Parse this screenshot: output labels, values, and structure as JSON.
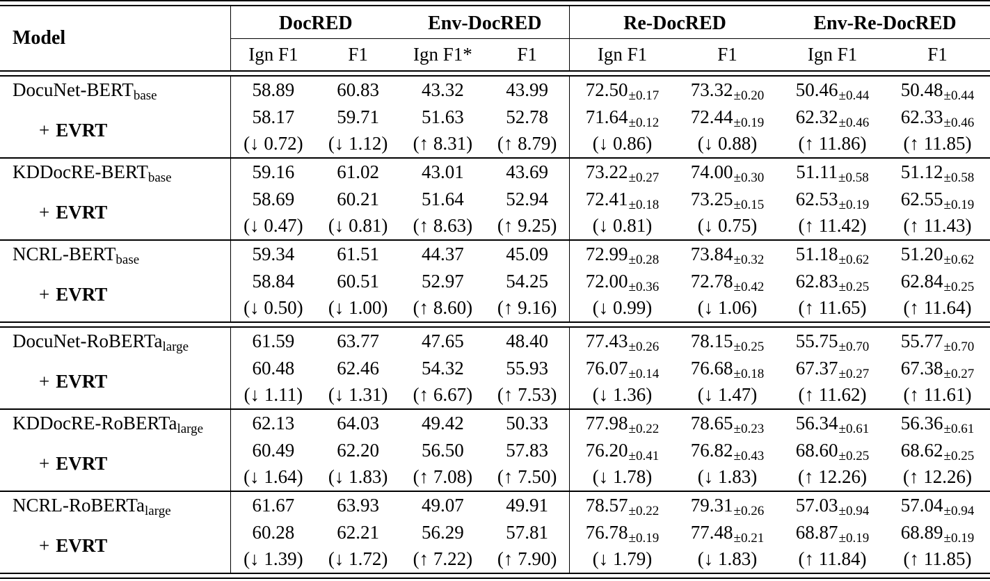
{
  "colors": {
    "background": "#ffffff",
    "text": "#000000",
    "rules": "#000000"
  },
  "table": {
    "header": {
      "model": "Model",
      "groups": [
        {
          "label": "DocRED"
        },
        {
          "label": "Env-DocRED"
        },
        {
          "label": "Re-DocRED"
        },
        {
          "label": "Env-Re-DocRED"
        }
      ],
      "subheaders": [
        "Ign F1",
        "F1",
        "Ign F1*",
        "F1",
        "Ign F1",
        "F1",
        "Ign F1",
        "F1"
      ]
    },
    "blocks": [
      {
        "model": "DocuNet-BERT",
        "model_sub": "base",
        "evrt_plus": "+",
        "evrt_name": "EVRT",
        "base": [
          {
            "t": "58.89"
          },
          {
            "t": "60.83"
          },
          {
            "t": "43.32"
          },
          {
            "t": "43.99"
          },
          {
            "t": "72.50",
            "sub": "±0.17"
          },
          {
            "t": "73.32",
            "sub": "±0.20"
          },
          {
            "t": "50.46",
            "sub": "±0.44"
          },
          {
            "t": "50.48",
            "sub": "±0.44"
          }
        ],
        "evrt_vals": [
          {
            "t": "58.17"
          },
          {
            "t": "59.71"
          },
          {
            "t": "51.63"
          },
          {
            "t": "52.78"
          },
          {
            "t": "71.64",
            "sub": "±0.12"
          },
          {
            "t": "72.44",
            "sub": "±0.19"
          },
          {
            "t": "62.32",
            "sub": "±0.46"
          },
          {
            "t": "62.33",
            "sub": "±0.46"
          }
        ],
        "delta": [
          {
            "t": "(↓ 0.72)"
          },
          {
            "t": "(↓ 1.12)"
          },
          {
            "t": "(↑ 8.31)"
          },
          {
            "t": "(↑ 8.79)"
          },
          {
            "t": "(↓ 0.86)"
          },
          {
            "t": "(↓ 0.88)"
          },
          {
            "t": "(↑ 11.86)"
          },
          {
            "t": "(↑ 11.85)"
          }
        ]
      },
      {
        "model": "KDDocRE-BERT",
        "model_sub": "base",
        "evrt_plus": "+",
        "evrt_name": "EVRT",
        "base": [
          {
            "t": "59.16"
          },
          {
            "t": "61.02"
          },
          {
            "t": "43.01"
          },
          {
            "t": "43.69"
          },
          {
            "t": "73.22",
            "sub": "±0.27"
          },
          {
            "t": "74.00",
            "sub": "±0.30"
          },
          {
            "t": "51.11",
            "sub": "±0.58"
          },
          {
            "t": "51.12",
            "sub": "±0.58"
          }
        ],
        "evrt_vals": [
          {
            "t": "58.69"
          },
          {
            "t": "60.21"
          },
          {
            "t": "51.64"
          },
          {
            "t": "52.94"
          },
          {
            "t": "72.41",
            "sub": "±0.18"
          },
          {
            "t": "73.25",
            "sub": "±0.15"
          },
          {
            "t": "62.53",
            "sub": "±0.19"
          },
          {
            "t": "62.55",
            "sub": "±0.19"
          }
        ],
        "delta": [
          {
            "t": "(↓ 0.47)"
          },
          {
            "t": "(↓ 0.81)"
          },
          {
            "t": "(↑ 8.63)"
          },
          {
            "t": "(↑ 9.25)"
          },
          {
            "t": "(↓ 0.81)"
          },
          {
            "t": "(↓ 0.75)"
          },
          {
            "t": "(↑ 11.42)"
          },
          {
            "t": "(↑ 11.43)"
          }
        ]
      },
      {
        "model": "NCRL-BERT",
        "model_sub": "base",
        "evrt_plus": "+",
        "evrt_name": "EVRT",
        "base": [
          {
            "t": "59.34"
          },
          {
            "t": "61.51"
          },
          {
            "t": "44.37"
          },
          {
            "t": "45.09"
          },
          {
            "t": "72.99",
            "sub": "±0.28"
          },
          {
            "t": "73.84",
            "sub": "±0.32"
          },
          {
            "t": "51.18",
            "sub": "±0.62"
          },
          {
            "t": "51.20",
            "sub": "±0.62"
          }
        ],
        "evrt_vals": [
          {
            "t": "58.84"
          },
          {
            "t": "60.51"
          },
          {
            "t": "52.97"
          },
          {
            "t": "54.25"
          },
          {
            "t": "72.00",
            "sub": "±0.36"
          },
          {
            "t": "72.78",
            "sub": "±0.42"
          },
          {
            "t": "62.83",
            "sub": "±0.25"
          },
          {
            "t": "62.84",
            "sub": "±0.25"
          }
        ],
        "delta": [
          {
            "t": "(↓ 0.50)"
          },
          {
            "t": "(↓ 1.00)"
          },
          {
            "t": "(↑ 8.60)"
          },
          {
            "t": "(↑ 9.16)"
          },
          {
            "t": "(↓ 0.99)"
          },
          {
            "t": "(↓ 1.06)"
          },
          {
            "t": "(↑ 11.65)"
          },
          {
            "t": "(↑ 11.64)"
          }
        ]
      },
      {
        "model": "DocuNet-RoBERTa",
        "model_sub": "large",
        "evrt_plus": "+",
        "evrt_name": "EVRT",
        "base": [
          {
            "t": "61.59"
          },
          {
            "t": "63.77"
          },
          {
            "t": "47.65"
          },
          {
            "t": "48.40"
          },
          {
            "t": "77.43",
            "sub": "±0.26"
          },
          {
            "t": "78.15",
            "sub": "±0.25"
          },
          {
            "t": "55.75",
            "sub": "±0.70"
          },
          {
            "t": "55.77",
            "sub": "±0.70"
          }
        ],
        "evrt_vals": [
          {
            "t": "60.48"
          },
          {
            "t": "62.46"
          },
          {
            "t": "54.32"
          },
          {
            "t": "55.93"
          },
          {
            "t": "76.07",
            "sub": "±0.14"
          },
          {
            "t": "76.68",
            "sub": "±0.18"
          },
          {
            "t": "67.37",
            "sub": "±0.27"
          },
          {
            "t": "67.38",
            "sub": "±0.27"
          }
        ],
        "delta": [
          {
            "t": "(↓ 1.11)"
          },
          {
            "t": "(↓ 1.31)"
          },
          {
            "t": "(↑ 6.67)"
          },
          {
            "t": "(↑ 7.53)"
          },
          {
            "t": "(↓ 1.36)"
          },
          {
            "t": "(↓ 1.47)"
          },
          {
            "t": "(↑ 11.62)"
          },
          {
            "t": "(↑ 11.61)"
          }
        ]
      },
      {
        "model": "KDDocRE-RoBERTa",
        "model_sub": "large",
        "evrt_plus": "+",
        "evrt_name": "EVRT",
        "base": [
          {
            "t": "62.13"
          },
          {
            "t": "64.03"
          },
          {
            "t": "49.42"
          },
          {
            "t": "50.33"
          },
          {
            "t": "77.98",
            "sub": "±0.22"
          },
          {
            "t": "78.65",
            "sub": "±0.23"
          },
          {
            "t": "56.34",
            "sub": "±0.61"
          },
          {
            "t": "56.36",
            "sub": "±0.61"
          }
        ],
        "evrt_vals": [
          {
            "t": "60.49"
          },
          {
            "t": "62.20"
          },
          {
            "t": "56.50"
          },
          {
            "t": "57.83"
          },
          {
            "t": "76.20",
            "sub": "±0.41"
          },
          {
            "t": "76.82",
            "sub": "±0.43"
          },
          {
            "t": "68.60",
            "sub": "±0.25"
          },
          {
            "t": "68.62",
            "sub": "±0.25"
          }
        ],
        "delta": [
          {
            "t": "(↓ 1.64)"
          },
          {
            "t": "(↓ 1.83)"
          },
          {
            "t": "(↑ 7.08)"
          },
          {
            "t": "(↑ 7.50)"
          },
          {
            "t": "(↓ 1.78)"
          },
          {
            "t": "(↓ 1.83)"
          },
          {
            "t": "(↑ 12.26)"
          },
          {
            "t": "(↑ 12.26)"
          }
        ]
      },
      {
        "model": "NCRL-RoBERTa",
        "model_sub": "large",
        "evrt_plus": "+",
        "evrt_name": "EVRT",
        "base": [
          {
            "t": "61.67"
          },
          {
            "t": "63.93"
          },
          {
            "t": "49.07"
          },
          {
            "t": "49.91"
          },
          {
            "t": "78.57",
            "sub": "±0.22"
          },
          {
            "t": "79.31",
            "sub": "±0.26"
          },
          {
            "t": "57.03",
            "sub": "±0.94"
          },
          {
            "t": "57.04",
            "sub": "±0.94"
          }
        ],
        "evrt_vals": [
          {
            "t": "60.28"
          },
          {
            "t": "62.21"
          },
          {
            "t": "56.29"
          },
          {
            "t": "57.81"
          },
          {
            "t": "76.78",
            "sub": "±0.19"
          },
          {
            "t": "77.48",
            "sub": "±0.21"
          },
          {
            "t": "68.87",
            "sub": "±0.19"
          },
          {
            "t": "68.89",
            "sub": "±0.19"
          }
        ],
        "delta": [
          {
            "t": "(↓ 1.39)"
          },
          {
            "t": "(↓ 1.72)"
          },
          {
            "t": "(↑ 7.22)"
          },
          {
            "t": "(↑ 7.90)"
          },
          {
            "t": "(↓ 1.79)"
          },
          {
            "t": "(↓ 1.83)"
          },
          {
            "t": "(↑ 11.84)"
          },
          {
            "t": "(↑ 11.85)"
          }
        ]
      }
    ]
  }
}
